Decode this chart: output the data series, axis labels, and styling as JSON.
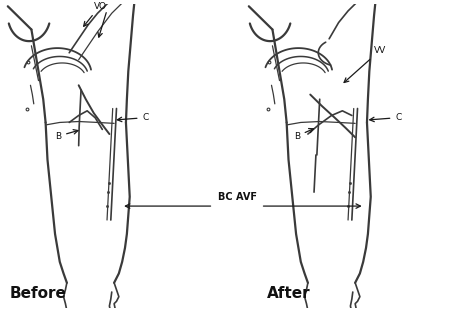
{
  "background_color": "#ffffff",
  "line_color": "#3a3a3a",
  "arrow_color": "#1a1a1a",
  "text_color": "#111111",
  "fig_width": 4.74,
  "fig_height": 3.09,
  "dpi": 100,
  "before_label": "Before",
  "after_label": "After",
  "bc_avf_label": "BC AVF",
  "lw_main": 1.6,
  "lw_thin": 0.9,
  "lw_med": 1.2
}
